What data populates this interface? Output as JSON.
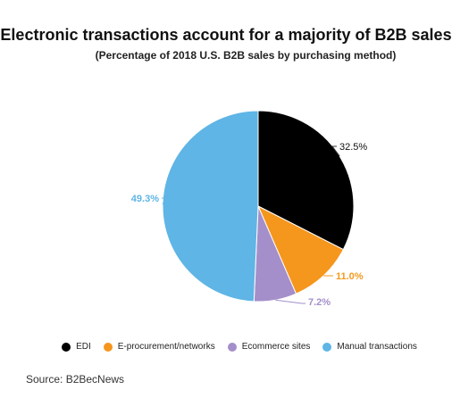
{
  "chart_data": {
    "type": "pie",
    "title": "Electronic transactions account for a majority of B2B sales",
    "subtitle": "(Percentage of 2018 U.S. B2B sales by purchasing method)",
    "slices": [
      {
        "name": "EDI",
        "value": 32.5,
        "label": "32.5%",
        "color": "#000000",
        "label_color": "#111111"
      },
      {
        "name": "E-procurement/networks",
        "value": 11.0,
        "label": "11.0%",
        "color": "#f5961d",
        "label_color": "#f39a1f"
      },
      {
        "name": "Ecommerce sites",
        "value": 7.2,
        "label": "7.2%",
        "color": "#a48fca",
        "label_color": "#a48fca"
      },
      {
        "name": "Manual transactions",
        "value": 49.3,
        "label": "49.3%",
        "color": "#5fb5e5",
        "label_color": "#5fb5e5"
      }
    ],
    "legend_position": "bottom",
    "source": "Source: B2BecNews"
  }
}
